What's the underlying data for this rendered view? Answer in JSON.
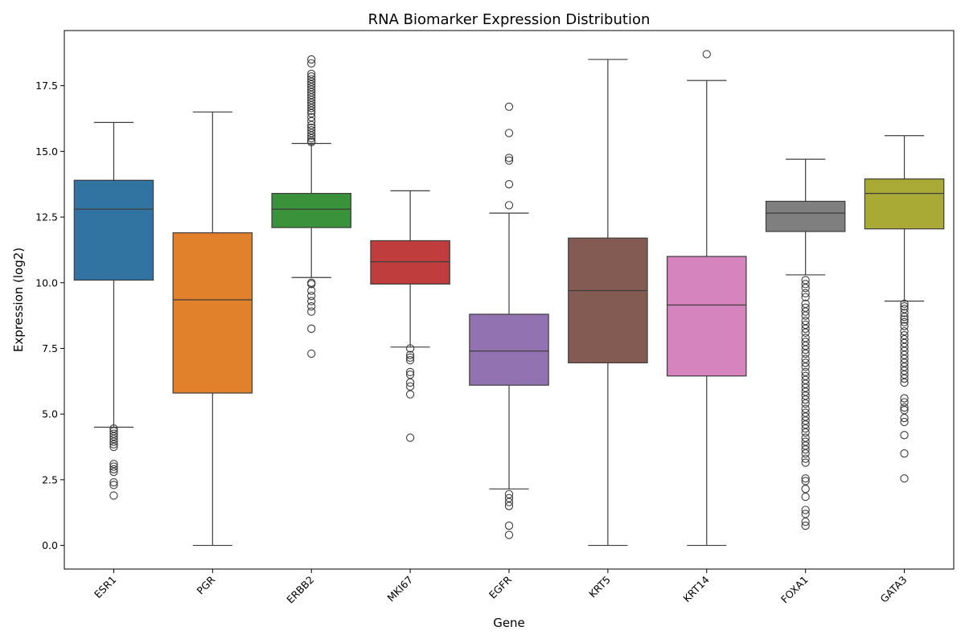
{
  "chart_data": {
    "type": "box",
    "title": "RNA Biomarker Expression Distribution",
    "xlabel": "Gene",
    "ylabel": "Expression (log2)",
    "ylim": [
      -0.9,
      19.6
    ],
    "yticks": [
      0.0,
      2.5,
      5.0,
      7.5,
      10.0,
      12.5,
      15.0,
      17.5
    ],
    "ytick_labels": [
      "0.0",
      "2.5",
      "5.0",
      "7.5",
      "10.0",
      "12.5",
      "15.0",
      "17.5"
    ],
    "grid": false,
    "legend": "none",
    "categories": [
      "ESR1",
      "PGR",
      "ERBB2",
      "MKI67",
      "EGFR",
      "KRT5",
      "KRT14",
      "FOXA1",
      "GATA3"
    ],
    "colors": [
      "#3274a1",
      "#e1812c",
      "#3a923a",
      "#c03d3e",
      "#9372b2",
      "#845b53",
      "#d684bd",
      "#7f7f7f",
      "#a9aa35"
    ],
    "boxes": [
      {
        "name": "ESR1",
        "whisker_low": 4.5,
        "q1": 10.1,
        "median": 12.8,
        "q3": 13.9,
        "whisker_high": 16.1,
        "outliers": [
          4.45,
          4.35,
          4.25,
          4.15,
          4.05,
          3.95,
          3.85,
          3.75,
          3.1,
          3.0,
          2.9,
          2.8,
          2.4,
          2.3,
          1.9
        ]
      },
      {
        "name": "PGR",
        "whisker_low": 0.0,
        "q1": 5.8,
        "median": 9.35,
        "q3": 11.9,
        "whisker_high": 16.5,
        "outliers": []
      },
      {
        "name": "ERBB2",
        "whisker_low": 10.2,
        "q1": 12.1,
        "median": 12.8,
        "q3": 13.4,
        "whisker_high": 15.3,
        "outliers": [
          18.5,
          18.35,
          17.95,
          17.85,
          17.75,
          17.65,
          17.55,
          17.45,
          17.35,
          17.25,
          17.15,
          17.05,
          16.95,
          16.85,
          16.75,
          16.65,
          16.55,
          16.45,
          16.3,
          16.15,
          16.0,
          15.9,
          15.8,
          15.7,
          15.6,
          15.5,
          15.4,
          15.35,
          10.0,
          9.95,
          9.7,
          9.5,
          9.3,
          9.1,
          8.9,
          8.25,
          7.3
        ]
      },
      {
        "name": "MKI67",
        "whisker_low": 7.55,
        "q1": 9.95,
        "median": 10.8,
        "q3": 11.6,
        "whisker_high": 13.5,
        "outliers": [
          7.5,
          7.25,
          7.15,
          7.05,
          6.6,
          6.5,
          6.2,
          6.05,
          5.75,
          4.1
        ]
      },
      {
        "name": "EGFR",
        "whisker_low": 2.15,
        "q1": 6.1,
        "median": 7.4,
        "q3": 8.8,
        "whisker_high": 12.65,
        "outliers": [
          16.7,
          15.7,
          14.75,
          14.65,
          13.75,
          12.95,
          1.95,
          1.8,
          1.65,
          1.5,
          0.75,
          0.4
        ]
      },
      {
        "name": "KRT5",
        "whisker_low": 0.0,
        "q1": 6.95,
        "median": 9.7,
        "q3": 11.7,
        "whisker_high": 18.5,
        "outliers": []
      },
      {
        "name": "KRT14",
        "whisker_low": 0.0,
        "q1": 6.45,
        "median": 9.15,
        "q3": 11.0,
        "whisker_high": 17.7,
        "outliers": [
          18.7
        ]
      },
      {
        "name": "FOXA1",
        "whisker_low": 10.3,
        "q1": 11.95,
        "median": 12.65,
        "q3": 13.1,
        "whisker_high": 14.7,
        "outliers": [
          10.1,
          9.95,
          9.8,
          9.6,
          9.45,
          9.2,
          9.05,
          8.9,
          8.75,
          8.55,
          8.4,
          8.25,
          8.1,
          7.9,
          7.75,
          7.6,
          7.45,
          7.3,
          7.1,
          6.95,
          6.8,
          6.6,
          6.45,
          6.3,
          6.15,
          6.0,
          5.85,
          5.7,
          5.55,
          5.4,
          5.2,
          5.05,
          4.9,
          4.75,
          4.6,
          4.45,
          4.3,
          4.1,
          3.95,
          3.8,
          3.65,
          3.5,
          3.3,
          3.15,
          2.55,
          2.45,
          2.15,
          1.85,
          1.35,
          1.2,
          0.9,
          0.75
        ]
      },
      {
        "name": "GATA3",
        "whisker_low": 9.3,
        "q1": 12.05,
        "median": 13.4,
        "q3": 13.95,
        "whisker_high": 15.6,
        "outliers": [
          9.2,
          9.1,
          9.0,
          8.85,
          8.7,
          8.6,
          8.5,
          8.35,
          8.15,
          8.0,
          7.85,
          7.7,
          7.55,
          7.4,
          7.25,
          7.1,
          6.95,
          6.8,
          6.65,
          6.5,
          6.35,
          6.2,
          5.6,
          5.45,
          5.25,
          5.15,
          4.85,
          4.7,
          4.2,
          3.5,
          2.55
        ]
      }
    ]
  }
}
